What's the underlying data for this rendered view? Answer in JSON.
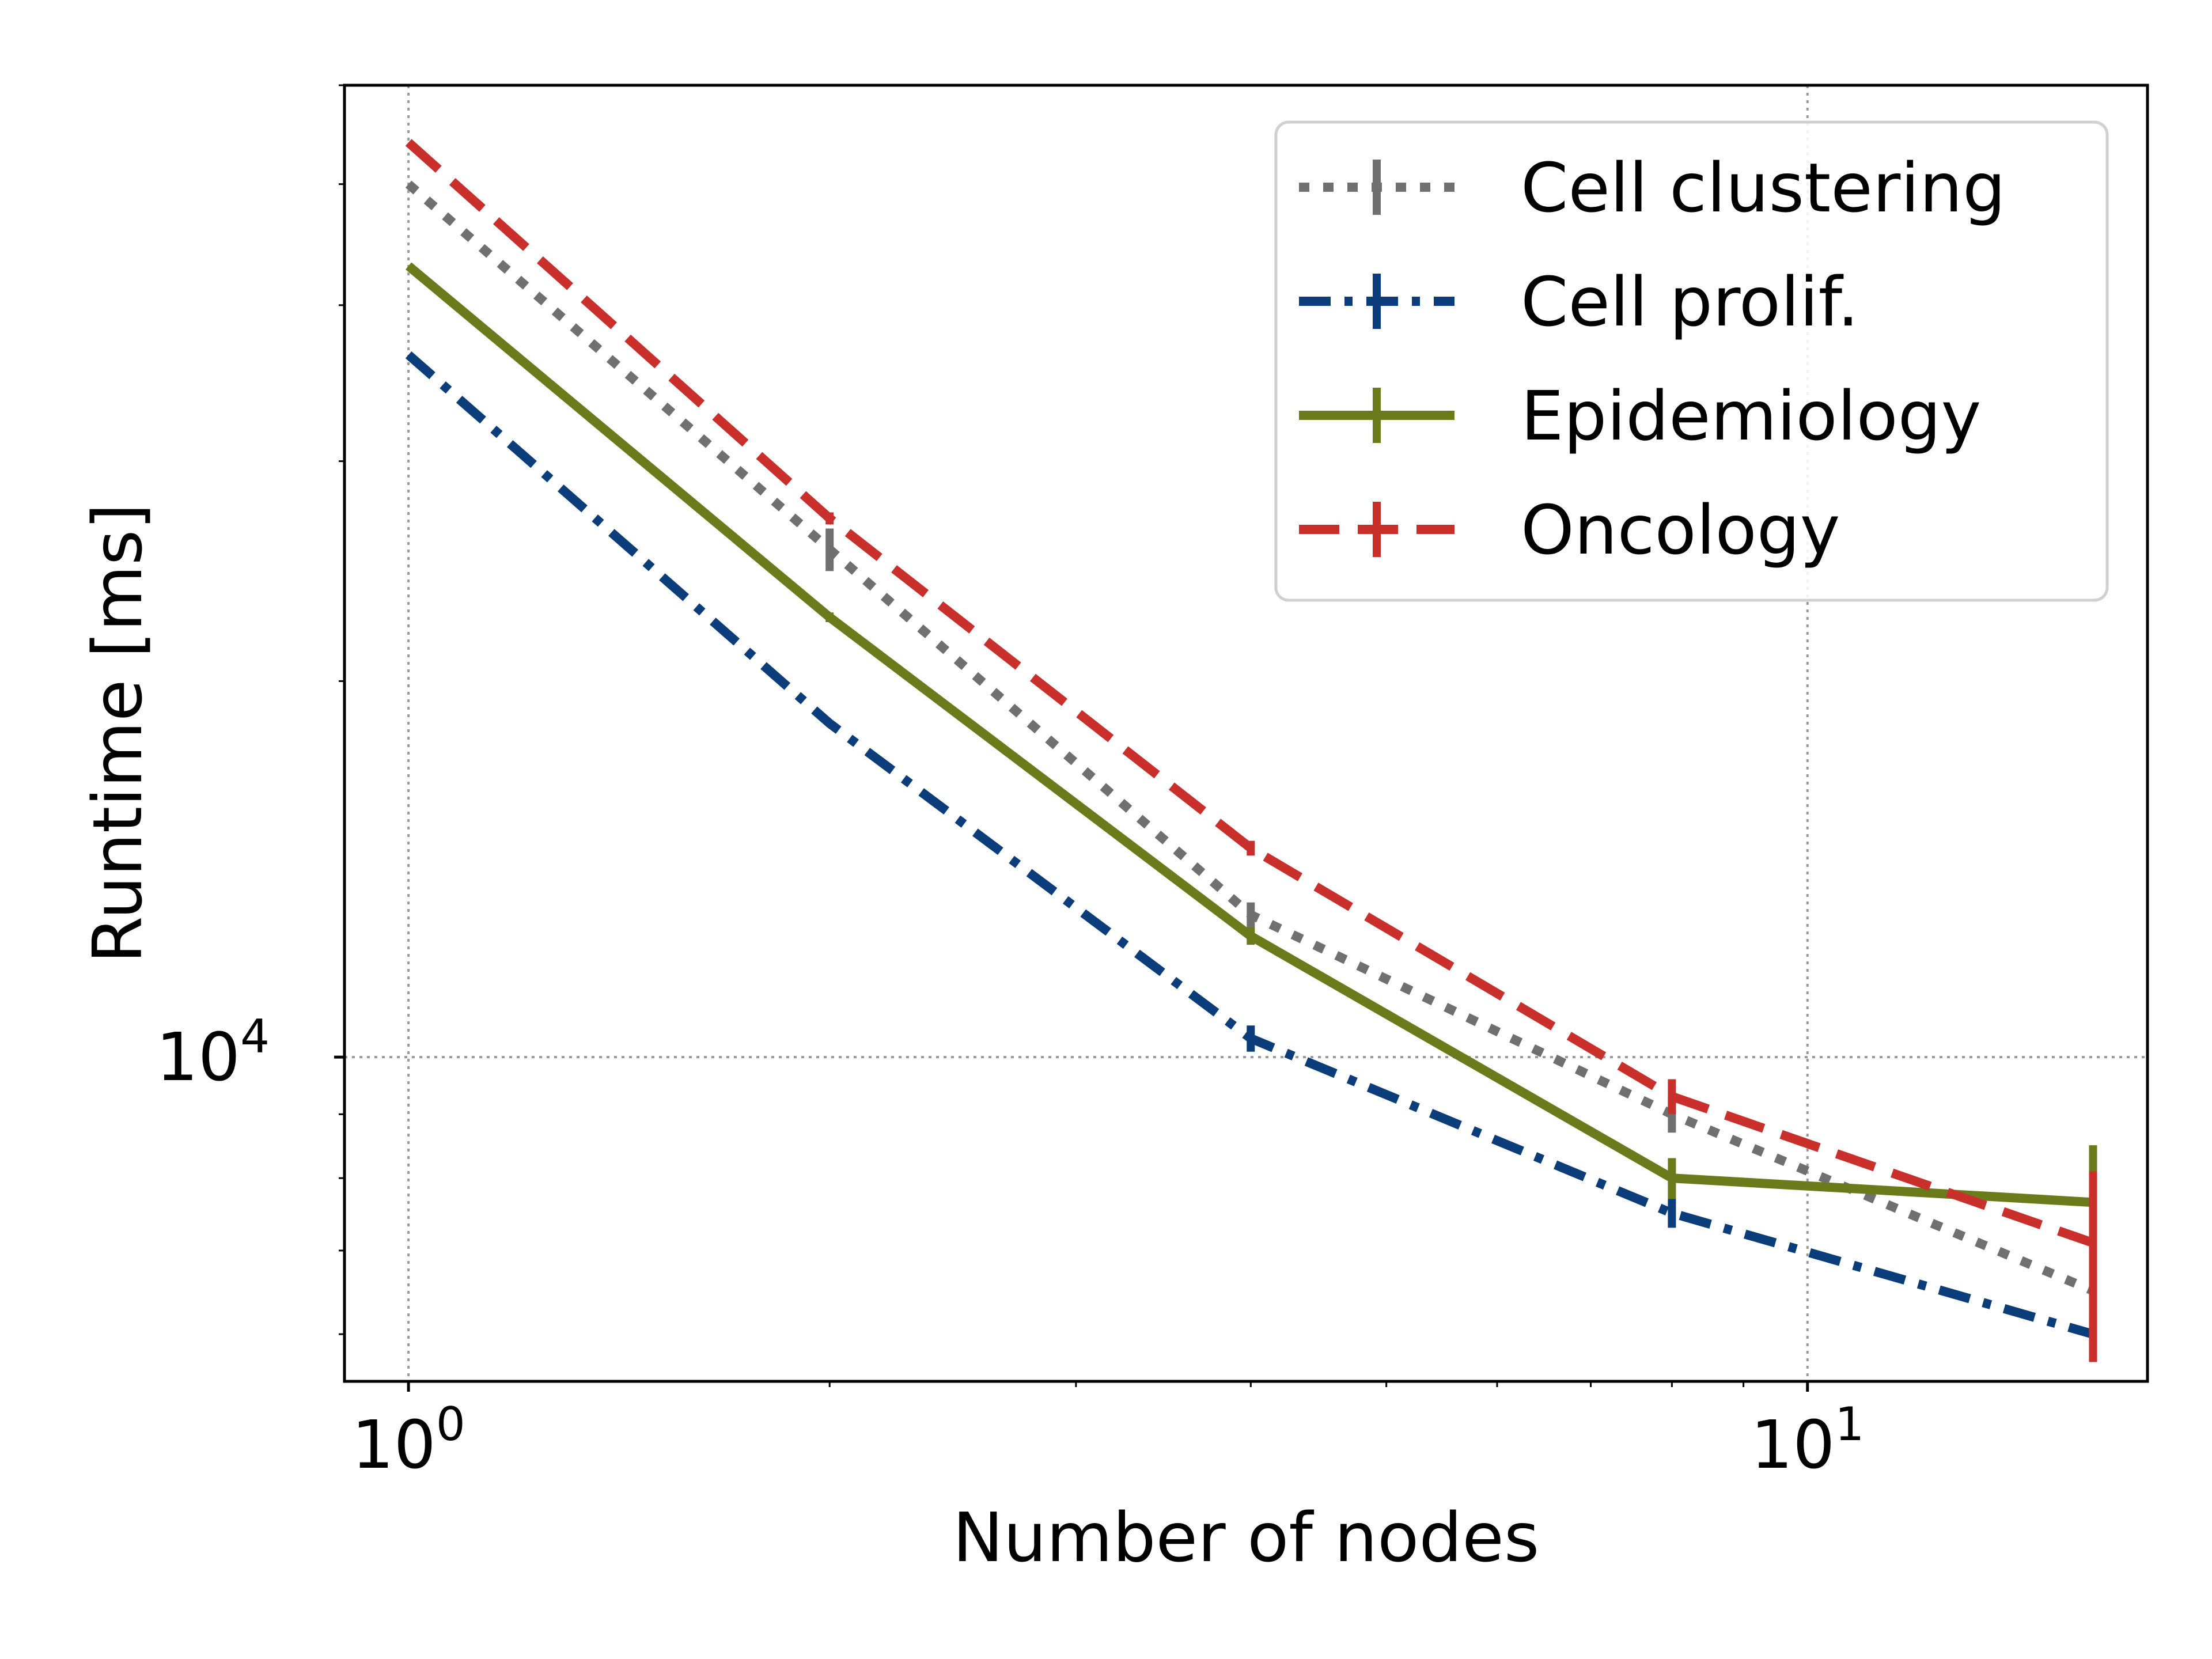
{
  "chart_data": {
    "type": "line",
    "title": "",
    "xlabel": "Number of nodes",
    "ylabel": "Runtime [ms]",
    "xscale": "log",
    "yscale": "log",
    "xlim": [
      0.9,
      17.5
    ],
    "ylim": [
      5500,
      60000
    ],
    "x": [
      1,
      2,
      4,
      8,
      16
    ],
    "x_ticks": [
      {
        "base": "10",
        "exp": "0",
        "value": 1
      },
      {
        "base": "10",
        "exp": "1",
        "value": 10
      }
    ],
    "y_ticks": [
      {
        "base": "10",
        "exp": "4",
        "value": 10000
      }
    ],
    "grid": "major, dotted grey",
    "legend_position": "top-right",
    "series": [
      {
        "name": "Cell clustering",
        "color": "#707070",
        "dash": "dotted",
        "values": [
          50000,
          25500,
          13000,
          9000,
          6500
        ],
        "err_low": [
          50000,
          24500,
          12700,
          8700,
          6300
        ],
        "err_high": [
          50000,
          26500,
          13300,
          9300,
          6700
        ]
      },
      {
        "name": "Cell prolif.",
        "color": "#0a3d7a",
        "dash": "dashdot",
        "values": [
          36500,
          18500,
          10350,
          7500,
          6000
        ],
        "err_low": [
          36500,
          18500,
          10100,
          7300,
          5700
        ],
        "err_high": [
          36500,
          18500,
          10600,
          7700,
          6200
        ]
      },
      {
        "name": "Epidemiology",
        "color": "#6b7a1a",
        "dash": "solid",
        "values": [
          43000,
          22500,
          12500,
          8000,
          7650
        ],
        "err_low": [
          43000,
          22300,
          12300,
          7700,
          7200
        ],
        "err_high": [
          43000,
          22700,
          12700,
          8300,
          8500
        ]
      },
      {
        "name": "Oncology",
        "color": "#c9302c",
        "dash": "dashed",
        "values": [
          54000,
          27000,
          14700,
          9300,
          7100
        ],
        "err_low": [
          54000,
          26700,
          14500,
          9000,
          5700
        ],
        "err_high": [
          54000,
          27300,
          14900,
          9600,
          8100
        ]
      }
    ]
  }
}
